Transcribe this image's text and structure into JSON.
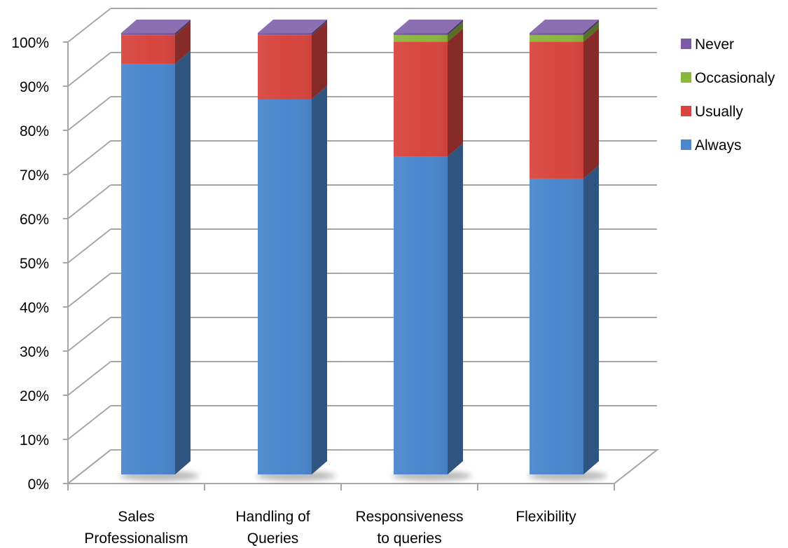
{
  "chart_data": {
    "type": "bar",
    "stacked": true,
    "percent_stacked": true,
    "three_d": true,
    "categories": [
      [
        "Sales",
        "Professionalism"
      ],
      [
        "Handling of",
        "Queries"
      ],
      [
        "Responsiveness",
        "to queries"
      ],
      [
        "Flexibility"
      ]
    ],
    "series": [
      {
        "name": "Always",
        "color": "#4a87cd",
        "values": [
          93,
          85,
          72,
          67
        ]
      },
      {
        "name": "Usually",
        "color": "#d8453f",
        "values": [
          6.5,
          14.5,
          26,
          31
        ]
      },
      {
        "name": "Occasionaly",
        "color": "#8cb53d",
        "values": [
          0,
          0,
          1.5,
          1.5
        ]
      },
      {
        "name": "Never",
        "color": "#7b5ba6",
        "values": [
          0.5,
          0.5,
          0.5,
          0.5
        ]
      }
    ],
    "legend_order": [
      "Never",
      "Occasionaly",
      "Usually",
      "Always"
    ],
    "legend_position": "right",
    "ylim": [
      0,
      100
    ],
    "yticks": [
      "0%",
      "10%",
      "20%",
      "30%",
      "40%",
      "50%",
      "60%",
      "70%",
      "80%",
      "90%",
      "100%"
    ],
    "grid": true
  }
}
